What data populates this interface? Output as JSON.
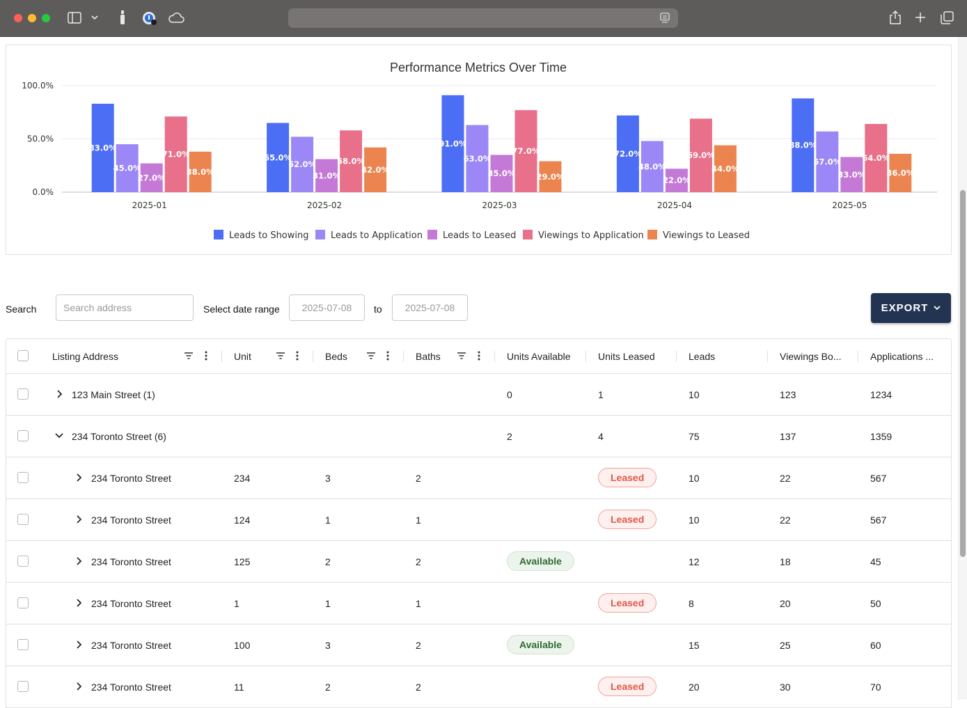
{
  "chart_data": {
    "type": "bar",
    "title": "Performance Metrics Over Time",
    "categories": [
      "2025-01",
      "2025-02",
      "2025-03",
      "2025-04",
      "2025-05"
    ],
    "y_ticks": [
      "100.0%",
      "50.0%",
      "0.0%"
    ],
    "ylim": [
      0,
      100
    ],
    "grid": true,
    "legend_position": "bottom",
    "series": [
      {
        "name": "Leads to Showing",
        "color": "#4c6ef5",
        "values": [
          83,
          65,
          91,
          72,
          88
        ]
      },
      {
        "name": "Leads to Application",
        "color": "#9b87f5",
        "values": [
          45,
          52,
          63,
          48,
          57
        ]
      },
      {
        "name": "Leads to Leased",
        "color": "#c479d6",
        "values": [
          27,
          31,
          35,
          22,
          33
        ]
      },
      {
        "name": "Viewings to Application",
        "color": "#e8708a",
        "values": [
          71,
          58,
          77,
          69,
          64
        ]
      },
      {
        "name": "Viewings to Leased",
        "color": "#ec8450",
        "values": [
          38,
          42,
          29,
          44,
          36
        ]
      }
    ]
  },
  "filters": {
    "search_label": "Search",
    "search_placeholder": "Search address",
    "date_range_label": "Select date range",
    "date_from": "2025-07-08",
    "to_label": "to",
    "date_to": "2025-07-08",
    "export_label": "EXPORT"
  },
  "columns": [
    "Listing Address",
    "Unit",
    "Beds",
    "Baths",
    "Units Available",
    "Units Leased",
    "Leads",
    "Viewings Bo...",
    "Applications ..."
  ],
  "rows": [
    {
      "level": 0,
      "expanded": false,
      "address": "123 Main Street (1)",
      "unit": "",
      "beds": "",
      "baths": "",
      "available": "0",
      "leased": "1",
      "leads": "10",
      "viewings": "123",
      "applications": "1234"
    },
    {
      "level": 0,
      "expanded": true,
      "address": "234 Toronto Street (6)",
      "unit": "",
      "beds": "",
      "baths": "",
      "available": "2",
      "leased": "4",
      "leads": "75",
      "viewings": "137",
      "applications": "1359"
    },
    {
      "level": 1,
      "expanded": false,
      "address": "234 Toronto Street",
      "unit": "234",
      "beds": "3",
      "baths": "2",
      "status": "Leased",
      "leads": "10",
      "viewings": "22",
      "applications": "567"
    },
    {
      "level": 1,
      "expanded": false,
      "address": "234 Toronto Street",
      "unit": "124",
      "beds": "1",
      "baths": "1",
      "status": "Leased",
      "leads": "10",
      "viewings": "22",
      "applications": "567"
    },
    {
      "level": 1,
      "expanded": false,
      "address": "234 Toronto Street",
      "unit": "125",
      "beds": "2",
      "baths": "2",
      "status": "Available",
      "leads": "12",
      "viewings": "18",
      "applications": "45"
    },
    {
      "level": 1,
      "expanded": false,
      "address": "234 Toronto Street",
      "unit": "1",
      "beds": "1",
      "baths": "1",
      "status": "Leased",
      "leads": "8",
      "viewings": "20",
      "applications": "50"
    },
    {
      "level": 1,
      "expanded": false,
      "address": "234 Toronto Street",
      "unit": "100",
      "beds": "3",
      "baths": "2",
      "status": "Available",
      "leads": "15",
      "viewings": "25",
      "applications": "60"
    },
    {
      "level": 1,
      "expanded": false,
      "address": "234 Toronto Street",
      "unit": "11",
      "beds": "2",
      "baths": "2",
      "status": "Leased",
      "leads": "20",
      "viewings": "30",
      "applications": "70"
    }
  ]
}
